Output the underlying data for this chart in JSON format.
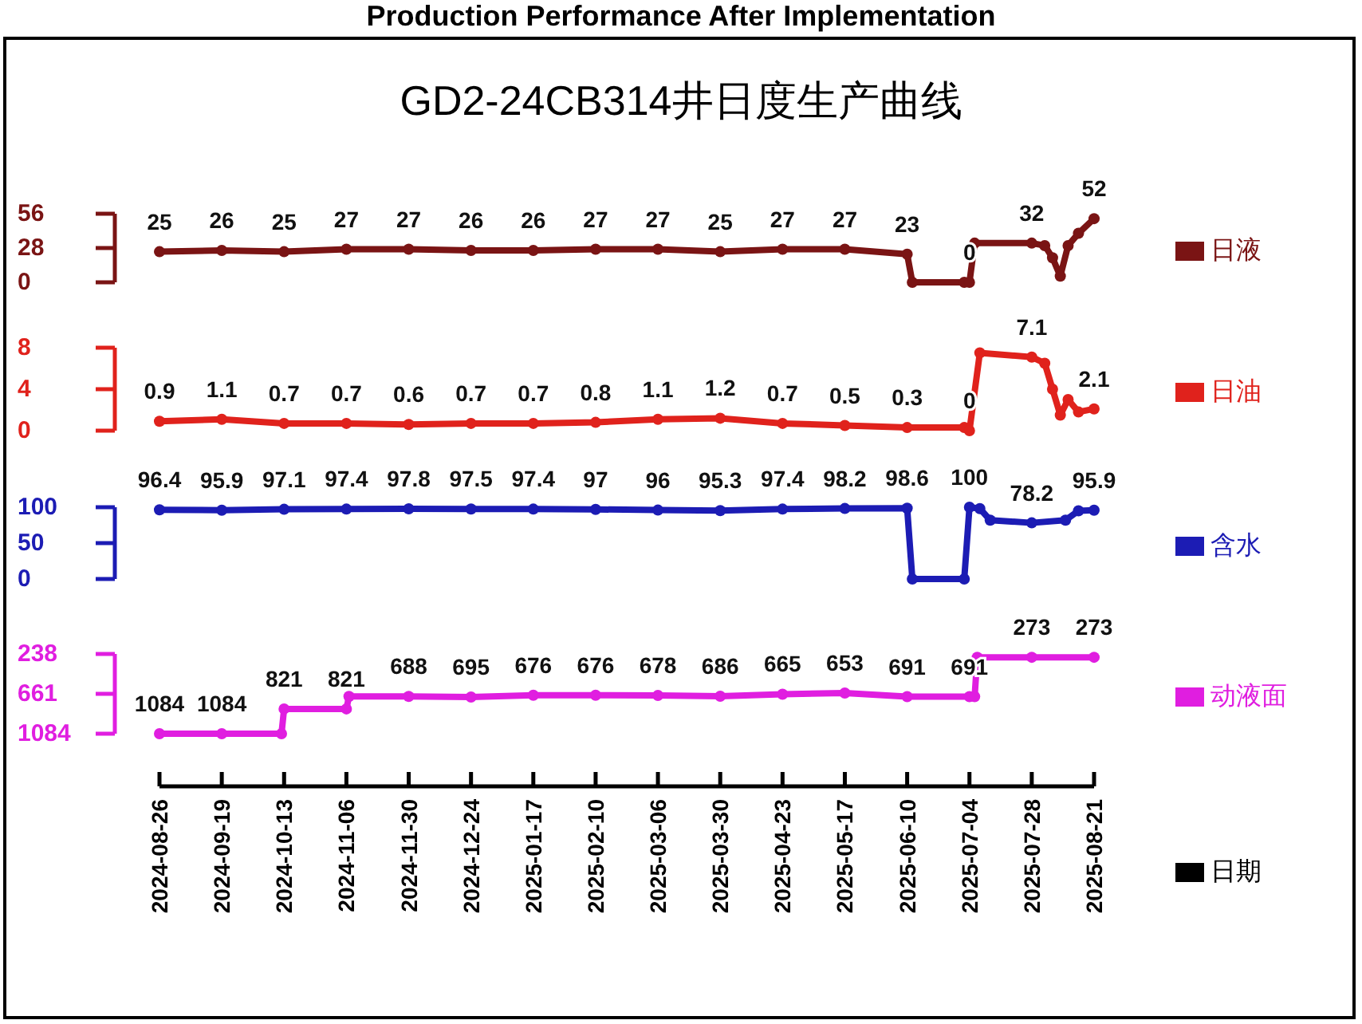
{
  "chart_data": [
    {
      "type": "line",
      "title": "Production Performance After Implementation",
      "subtitle": "GD2-24CB314井日度生产曲线",
      "legend": "right",
      "marker": "circle",
      "line_style": "solid",
      "tick_labels": "y",
      "x": [
        "2024-08-26",
        "2024-09-19",
        "2024-10-13",
        "2024-11-06",
        "2024-11-30",
        "2024-12-24",
        "2025-01-17",
        "2025-02-10",
        "2025-03-06",
        "2025-03-30",
        "2025-04-23",
        "2025-05-17",
        "2025-06-10",
        "2025-06-12",
        "2025-07-02",
        "2025-07-04",
        "2025-07-06",
        "2025-07-28",
        "2025-08-02",
        "2025-08-05",
        "2025-08-08",
        "2025-08-11",
        "2025-08-15",
        "2025-08-21"
      ],
      "series": [
        {
          "name": "日液",
          "color": "#7a1414",
          "values": [
            25,
            26,
            25,
            27,
            27,
            26,
            26,
            27,
            27,
            25,
            27,
            27,
            23,
            0,
            0,
            0,
            32,
            32,
            30,
            20,
            5,
            30,
            40,
            52
          ],
          "value_labels": [
            "25",
            "26",
            "25",
            "27",
            "27",
            "26",
            "26",
            "27",
            "27",
            "25",
            "27",
            "27",
            "23",
            null,
            null,
            "0",
            null,
            "32",
            null,
            null,
            null,
            null,
            null,
            "52"
          ]
        }
      ],
      "xlim": [
        "2024-08-26",
        "2025-08-21"
      ],
      "ylim": [
        0,
        56
      ],
      "yticks": [
        0,
        28,
        56
      ]
    },
    {
      "type": "line",
      "legend": "right",
      "marker": "circle",
      "line_style": "solid",
      "tick_labels": "y",
      "x": [
        "2024-08-26",
        "2024-09-19",
        "2024-10-13",
        "2024-11-06",
        "2024-11-30",
        "2024-12-24",
        "2025-01-17",
        "2025-02-10",
        "2025-03-06",
        "2025-03-30",
        "2025-04-23",
        "2025-05-17",
        "2025-06-10",
        "2025-07-02",
        "2025-07-04",
        "2025-07-08",
        "2025-07-28",
        "2025-08-02",
        "2025-08-05",
        "2025-08-08",
        "2025-08-11",
        "2025-08-15",
        "2025-08-21"
      ],
      "series": [
        {
          "name": "日油",
          "color": "#e0221c",
          "values": [
            0.9,
            1.1,
            0.7,
            0.7,
            0.6,
            0.7,
            0.7,
            0.8,
            1.1,
            1.2,
            0.7,
            0.5,
            0.3,
            0.3,
            0,
            7.5,
            7.1,
            6.5,
            4,
            1.5,
            3,
            1.8,
            2.1
          ],
          "value_labels": [
            "0.9",
            "1.1",
            "0.7",
            "0.7",
            "0.6",
            "0.7",
            "0.7",
            "0.8",
            "1.1",
            "1.2",
            "0.7",
            "0.5",
            "0.3",
            null,
            "0",
            null,
            "7.1",
            null,
            null,
            null,
            null,
            null,
            "2.1"
          ]
        }
      ],
      "xlim": [
        "2024-08-26",
        "2025-08-21"
      ],
      "ylim": [
        0,
        8
      ],
      "yticks": [
        0,
        4,
        8
      ]
    },
    {
      "type": "line",
      "legend": "right",
      "marker": "circle",
      "line_style": "solid",
      "tick_labels": "y",
      "x": [
        "2024-08-26",
        "2024-09-19",
        "2024-10-13",
        "2024-11-06",
        "2024-11-30",
        "2024-12-24",
        "2025-01-17",
        "2025-02-10",
        "2025-03-06",
        "2025-03-30",
        "2025-04-23",
        "2025-05-17",
        "2025-06-10",
        "2025-06-12",
        "2025-07-02",
        "2025-07-04",
        "2025-07-08",
        "2025-07-12",
        "2025-07-28",
        "2025-08-10",
        "2025-08-15",
        "2025-08-21"
      ],
      "series": [
        {
          "name": "含水",
          "color": "#1c1cb4",
          "values": [
            96.4,
            95.9,
            97.1,
            97.4,
            97.8,
            97.5,
            97.4,
            97,
            96,
            95.3,
            97.4,
            98.2,
            98.6,
            0,
            0,
            100,
            98,
            82,
            78.2,
            82,
            95,
            95.9
          ],
          "value_labels": [
            "96.4",
            "95.9",
            "97.1",
            "97.4",
            "97.8",
            "97.5",
            "97.4",
            "97",
            "96",
            "95.3",
            "97.4",
            "98.2",
            "98.6",
            null,
            null,
            "100",
            null,
            null,
            "78.2",
            null,
            null,
            "95.9"
          ]
        }
      ],
      "xlim": [
        "2024-08-26",
        "2025-08-21"
      ],
      "ylim": [
        0,
        100
      ],
      "yticks": [
        0,
        50,
        100
      ]
    },
    {
      "type": "line",
      "legend": "right",
      "marker": "circle",
      "line_style": "solid",
      "xlabel": "日期",
      "x": [
        "2024-08-26",
        "2024-09-19",
        "2024-10-12",
        "2024-10-13",
        "2024-11-06",
        "2024-11-07",
        "2024-11-30",
        "2024-12-24",
        "2025-01-17",
        "2025-02-10",
        "2025-03-06",
        "2025-03-30",
        "2025-04-23",
        "2025-05-17",
        "2025-06-10",
        "2025-07-04",
        "2025-07-06",
        "2025-07-07",
        "2025-07-28",
        "2025-08-21"
      ],
      "series": [
        {
          "name": "动液面",
          "color": "#e01ee0",
          "values": [
            1084,
            1084,
            1084,
            821,
            821,
            688,
            688,
            695,
            676,
            676,
            678,
            686,
            665,
            653,
            691,
            691,
            691,
            273,
            273,
            273
          ],
          "value_labels": [
            "1084",
            "1084",
            null,
            "821",
            "821",
            null,
            "688",
            "695",
            "676",
            "676",
            "678",
            "686",
            "665",
            "653",
            "691",
            "691",
            null,
            null,
            "273",
            "273"
          ]
        }
      ],
      "xlim": [
        "2024-08-26",
        "2025-08-21"
      ],
      "xticks": [
        "2024-08-26",
        "2024-09-19",
        "2024-10-13",
        "2024-11-06",
        "2024-11-30",
        "2024-12-24",
        "2025-01-17",
        "2025-02-10",
        "2025-03-06",
        "2025-03-30",
        "2025-04-23",
        "2025-05-17",
        "2025-06-10",
        "2025-07-04",
        "2025-07-28",
        "2025-08-21"
      ],
      "ylim": [
        1084,
        238
      ],
      "yticks": [
        238,
        661,
        1084
      ]
    }
  ]
}
